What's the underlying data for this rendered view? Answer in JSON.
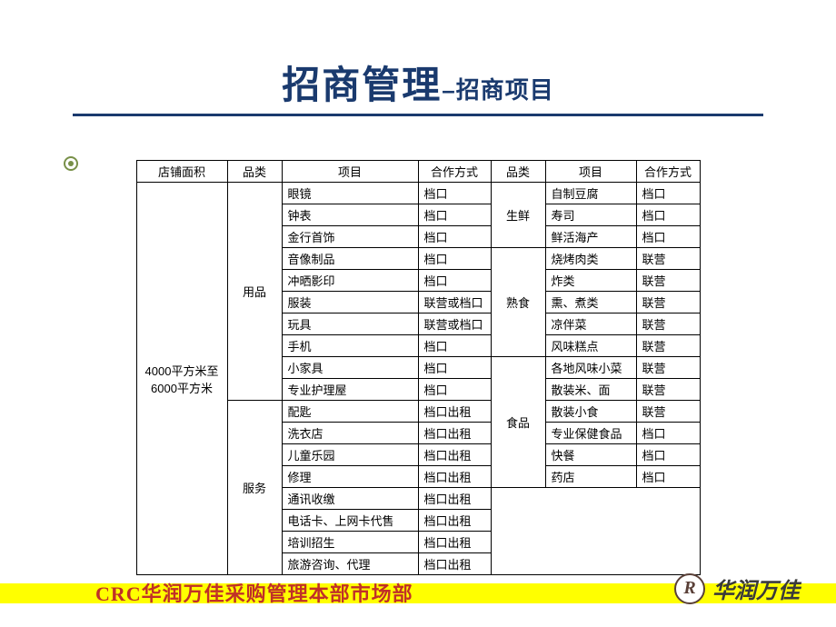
{
  "title": {
    "main": "招商管理",
    "dash": "–",
    "sub": "招商项目"
  },
  "headers": [
    "店铺面积",
    "品类",
    "项目",
    "合作方式",
    "品类",
    "项目",
    "合作方式"
  ],
  "area": "4000平方米至\n6000平方米",
  "cat_left": {
    "a": "用品",
    "b": "服务"
  },
  "cat_right": {
    "a": "生鲜",
    "b": "熟食",
    "c": "食品"
  },
  "left_rows": [
    {
      "item": "眼镜",
      "coop": "档口"
    },
    {
      "item": "钟表",
      "coop": "档口"
    },
    {
      "item": "金行首饰",
      "coop": "档口"
    },
    {
      "item": "音像制品",
      "coop": "档口"
    },
    {
      "item": "冲晒影印",
      "coop": "档口"
    },
    {
      "item": "服装",
      "coop": "联营或档口"
    },
    {
      "item": "玩具",
      "coop": "联营或档口"
    },
    {
      "item": "手机",
      "coop": "档口"
    },
    {
      "item": "小家具",
      "coop": "档口"
    },
    {
      "item": "专业护理屋",
      "coop": "档口"
    },
    {
      "item": "配匙",
      "coop": "档口出租"
    },
    {
      "item": "洗衣店",
      "coop": "档口出租"
    },
    {
      "item": "儿童乐园",
      "coop": "档口出租"
    },
    {
      "item": "修理",
      "coop": "档口出租"
    },
    {
      "item": "通讯收缴",
      "coop": "档口出租"
    },
    {
      "item": "电话卡、上网卡代售",
      "coop": "档口出租"
    },
    {
      "item": "培训招生",
      "coop": "档口出租"
    },
    {
      "item": "旅游咨询、代理",
      "coop": "档口出租"
    }
  ],
  "right_rows": [
    {
      "item": "自制豆腐",
      "coop": "档口"
    },
    {
      "item": "寿司",
      "coop": "档口"
    },
    {
      "item": "鲜活海产",
      "coop": "档口"
    },
    {
      "item": "烧烤肉类",
      "coop": "联营"
    },
    {
      "item": "炸类",
      "coop": "联营"
    },
    {
      "item": "熏、煮类",
      "coop": "联营"
    },
    {
      "item": "凉伴菜",
      "coop": "联营"
    },
    {
      "item": "风味糕点",
      "coop": "联营"
    },
    {
      "item": "各地风味小菜",
      "coop": "联营"
    },
    {
      "item": "散装米、面",
      "coop": "联营"
    },
    {
      "item": "散装小食",
      "coop": "联营"
    },
    {
      "item": "专业保健食品",
      "coop": "档口"
    },
    {
      "item": "快餐",
      "coop": "档口"
    },
    {
      "item": "药店",
      "coop": "档口"
    }
  ],
  "footer": {
    "text": "CRC华润万佳采购管理本部市场部",
    "logo_r": "R",
    "logo_text": "华润万佳"
  },
  "colors": {
    "title": "#1a3a6e",
    "footer_bar": "#ffff00",
    "footer_text": "#c03028",
    "logo": "#5a4038"
  }
}
